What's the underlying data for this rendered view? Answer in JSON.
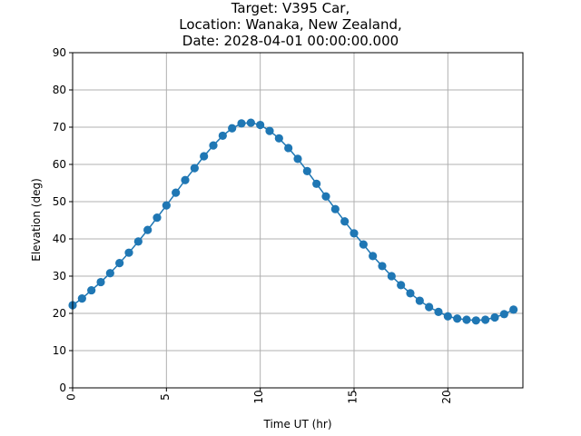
{
  "chart_data": {
    "type": "line",
    "title_lines": [
      "Target: V395 Car,",
      "Location: Wanaka, New Zealand,",
      "Date: 2028-04-01 00:00:00.000"
    ],
    "xlabel": "Time UT (hr)",
    "ylabel": "Elevation (deg)",
    "xlim": [
      0,
      24
    ],
    "ylim": [
      0,
      90
    ],
    "xticks": [
      0,
      5,
      10,
      15,
      20
    ],
    "xtick_labels": [
      "0",
      "5",
      "10",
      "15",
      "20"
    ],
    "yticks": [
      0,
      10,
      20,
      30,
      40,
      50,
      60,
      70,
      80,
      90
    ],
    "ytick_labels": [
      "0",
      "10",
      "20",
      "30",
      "40",
      "50",
      "60",
      "70",
      "80",
      "90"
    ],
    "grid": true,
    "marker": "circle",
    "series": [
      {
        "color": "#1f77b4",
        "x": [
          0,
          0.5,
          1,
          1.5,
          2,
          2.5,
          3,
          3.5,
          4,
          4.5,
          5,
          5.5,
          6,
          6.5,
          7,
          7.5,
          8,
          8.5,
          9,
          9.5,
          10,
          10.5,
          11,
          11.5,
          12,
          12.5,
          13,
          13.5,
          14,
          14.5,
          15,
          15.5,
          16,
          16.5,
          17,
          17.5,
          18,
          18.5,
          19,
          19.5,
          20,
          20.5,
          21,
          21.5,
          22,
          22.5,
          23,
          23.5
        ],
        "y": [
          22.2,
          24.0,
          26.2,
          28.4,
          30.8,
          33.5,
          36.3,
          39.3,
          42.4,
          45.7,
          49.0,
          52.4,
          55.8,
          59.0,
          62.2,
          65.1,
          67.7,
          69.7,
          71.0,
          71.2,
          70.6,
          69.0,
          67.0,
          64.4,
          61.5,
          58.2,
          54.8,
          51.4,
          48.0,
          44.7,
          41.5,
          38.5,
          35.4,
          32.7,
          30.0,
          27.6,
          25.4,
          23.4,
          21.7,
          20.4,
          19.2,
          18.6,
          18.3,
          18.1,
          18.3,
          18.9,
          19.8,
          21.0
        ]
      }
    ]
  }
}
